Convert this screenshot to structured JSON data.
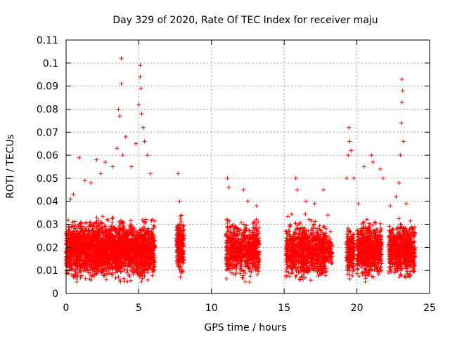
{
  "chart_data": {
    "type": "scatter",
    "title": "Day 329 of 2020, Rate Of TEC Index for receiver maju",
    "xlabel": "GPS time / hours",
    "ylabel": "ROTI / TECUs",
    "xlim": [
      0,
      25
    ],
    "ylim": [
      0,
      0.11
    ],
    "xticks": [
      0,
      5,
      10,
      15,
      20,
      25
    ],
    "xtick_labels": [
      "0",
      "5",
      "10",
      "15",
      "20",
      "25"
    ],
    "yticks": [
      0,
      0.01,
      0.02,
      0.03,
      0.04,
      0.05,
      0.06,
      0.07,
      0.08,
      0.09,
      0.1,
      0.11
    ],
    "ytick_labels": [
      "0",
      "0.01",
      "0.02",
      "0.03",
      "0.04",
      "0.05",
      "0.06",
      "0.07",
      "0.08",
      "0.09",
      "0.1",
      "0.11"
    ],
    "grid": true,
    "marker": "+",
    "series": [
      {
        "name": "ROTI",
        "color": "#ff0000",
        "clusters": [
          {
            "x_range": [
              0,
              6.1
            ],
            "y_range": [
              0.003,
              0.035
            ],
            "count": 2600
          },
          {
            "x_range": [
              7.6,
              8.1
            ],
            "y_range": [
              0.005,
              0.036
            ],
            "count": 260
          },
          {
            "x_range": [
              11.0,
              13.3
            ],
            "y_range": [
              0.004,
              0.034
            ],
            "count": 700
          },
          {
            "x_range": [
              15.1,
              17.9
            ],
            "y_range": [
              0.003,
              0.035
            ],
            "count": 900
          },
          {
            "x_range": [
              17.9,
              18.3
            ],
            "y_range": [
              0.008,
              0.028
            ],
            "count": 70
          },
          {
            "x_range": [
              19.3,
              19.8
            ],
            "y_range": [
              0.005,
              0.03
            ],
            "count": 220
          },
          {
            "x_range": [
              20.0,
              21.7
            ],
            "y_range": [
              0.004,
              0.034
            ],
            "count": 650
          },
          {
            "x_range": [
              22.2,
              24.0
            ],
            "y_range": [
              0.004,
              0.034
            ],
            "count": 650
          }
        ],
        "spikes": [
          [
            0.3,
            0.041
          ],
          [
            0.5,
            0.043
          ],
          [
            0.9,
            0.059
          ],
          [
            1.3,
            0.049
          ],
          [
            1.7,
            0.048
          ],
          [
            2.1,
            0.058
          ],
          [
            2.4,
            0.052
          ],
          [
            2.7,
            0.057
          ],
          [
            3.2,
            0.055
          ],
          [
            3.5,
            0.063
          ],
          [
            3.6,
            0.08
          ],
          [
            3.7,
            0.077
          ],
          [
            3.8,
            0.102
          ],
          [
            3.8,
            0.091
          ],
          [
            3.9,
            0.06
          ],
          [
            4.1,
            0.068
          ],
          [
            4.5,
            0.055
          ],
          [
            4.8,
            0.065
          ],
          [
            5.0,
            0.082
          ],
          [
            5.1,
            0.099
          ],
          [
            5.1,
            0.094
          ],
          [
            5.15,
            0.089
          ],
          [
            5.2,
            0.078
          ],
          [
            5.3,
            0.072
          ],
          [
            5.4,
            0.066
          ],
          [
            5.6,
            0.06
          ],
          [
            5.8,
            0.052
          ],
          [
            7.7,
            0.052
          ],
          [
            7.8,
            0.04
          ],
          [
            11.1,
            0.05
          ],
          [
            11.2,
            0.046
          ],
          [
            12.2,
            0.045
          ],
          [
            12.5,
            0.04
          ],
          [
            13.1,
            0.038
          ],
          [
            15.8,
            0.05
          ],
          [
            15.9,
            0.045
          ],
          [
            16.5,
            0.04
          ],
          [
            17.1,
            0.039
          ],
          [
            17.7,
            0.045
          ],
          [
            18.0,
            0.034
          ],
          [
            19.3,
            0.05
          ],
          [
            19.4,
            0.06
          ],
          [
            19.45,
            0.072
          ],
          [
            19.5,
            0.066
          ],
          [
            19.6,
            0.062
          ],
          [
            19.8,
            0.05
          ],
          [
            20.1,
            0.039
          ],
          [
            20.5,
            0.055
          ],
          [
            21.0,
            0.06
          ],
          [
            21.1,
            0.057
          ],
          [
            21.6,
            0.054
          ],
          [
            21.8,
            0.05
          ],
          [
            22.3,
            0.038
          ],
          [
            22.7,
            0.042
          ],
          [
            22.9,
            0.048
          ],
          [
            23.0,
            0.06
          ],
          [
            23.05,
            0.074
          ],
          [
            23.1,
            0.083
          ],
          [
            23.1,
            0.093
          ],
          [
            23.15,
            0.088
          ],
          [
            23.2,
            0.066
          ],
          [
            23.4,
            0.039
          ]
        ]
      }
    ]
  }
}
